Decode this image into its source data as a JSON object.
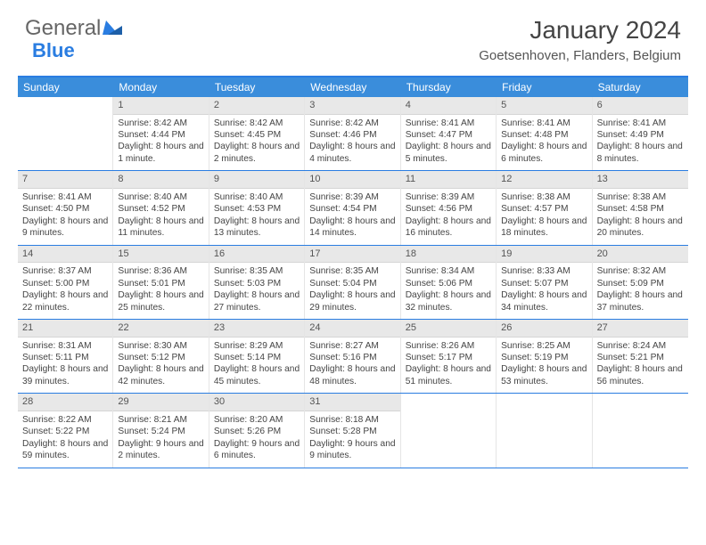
{
  "logo": {
    "part1": "General",
    "part2": "Blue"
  },
  "title": "January 2024",
  "location": "Goetsenhoven, Flanders, Belgium",
  "colors": {
    "header_bar": "#3a8ddb",
    "accent": "#2a7de1",
    "daybar": "#e8e8e8",
    "text": "#444444",
    "background": "#ffffff"
  },
  "day_names": [
    "Sunday",
    "Monday",
    "Tuesday",
    "Wednesday",
    "Thursday",
    "Friday",
    "Saturday"
  ],
  "weeks": [
    [
      {
        "n": "",
        "sunrise": "",
        "sunset": "",
        "daylight": ""
      },
      {
        "n": "1",
        "sunrise": "Sunrise: 8:42 AM",
        "sunset": "Sunset: 4:44 PM",
        "daylight": "Daylight: 8 hours and 1 minute."
      },
      {
        "n": "2",
        "sunrise": "Sunrise: 8:42 AM",
        "sunset": "Sunset: 4:45 PM",
        "daylight": "Daylight: 8 hours and 2 minutes."
      },
      {
        "n": "3",
        "sunrise": "Sunrise: 8:42 AM",
        "sunset": "Sunset: 4:46 PM",
        "daylight": "Daylight: 8 hours and 4 minutes."
      },
      {
        "n": "4",
        "sunrise": "Sunrise: 8:41 AM",
        "sunset": "Sunset: 4:47 PM",
        "daylight": "Daylight: 8 hours and 5 minutes."
      },
      {
        "n": "5",
        "sunrise": "Sunrise: 8:41 AM",
        "sunset": "Sunset: 4:48 PM",
        "daylight": "Daylight: 8 hours and 6 minutes."
      },
      {
        "n": "6",
        "sunrise": "Sunrise: 8:41 AM",
        "sunset": "Sunset: 4:49 PM",
        "daylight": "Daylight: 8 hours and 8 minutes."
      }
    ],
    [
      {
        "n": "7",
        "sunrise": "Sunrise: 8:41 AM",
        "sunset": "Sunset: 4:50 PM",
        "daylight": "Daylight: 8 hours and 9 minutes."
      },
      {
        "n": "8",
        "sunrise": "Sunrise: 8:40 AM",
        "sunset": "Sunset: 4:52 PM",
        "daylight": "Daylight: 8 hours and 11 minutes."
      },
      {
        "n": "9",
        "sunrise": "Sunrise: 8:40 AM",
        "sunset": "Sunset: 4:53 PM",
        "daylight": "Daylight: 8 hours and 13 minutes."
      },
      {
        "n": "10",
        "sunrise": "Sunrise: 8:39 AM",
        "sunset": "Sunset: 4:54 PM",
        "daylight": "Daylight: 8 hours and 14 minutes."
      },
      {
        "n": "11",
        "sunrise": "Sunrise: 8:39 AM",
        "sunset": "Sunset: 4:56 PM",
        "daylight": "Daylight: 8 hours and 16 minutes."
      },
      {
        "n": "12",
        "sunrise": "Sunrise: 8:38 AM",
        "sunset": "Sunset: 4:57 PM",
        "daylight": "Daylight: 8 hours and 18 minutes."
      },
      {
        "n": "13",
        "sunrise": "Sunrise: 8:38 AM",
        "sunset": "Sunset: 4:58 PM",
        "daylight": "Daylight: 8 hours and 20 minutes."
      }
    ],
    [
      {
        "n": "14",
        "sunrise": "Sunrise: 8:37 AM",
        "sunset": "Sunset: 5:00 PM",
        "daylight": "Daylight: 8 hours and 22 minutes."
      },
      {
        "n": "15",
        "sunrise": "Sunrise: 8:36 AM",
        "sunset": "Sunset: 5:01 PM",
        "daylight": "Daylight: 8 hours and 25 minutes."
      },
      {
        "n": "16",
        "sunrise": "Sunrise: 8:35 AM",
        "sunset": "Sunset: 5:03 PM",
        "daylight": "Daylight: 8 hours and 27 minutes."
      },
      {
        "n": "17",
        "sunrise": "Sunrise: 8:35 AM",
        "sunset": "Sunset: 5:04 PM",
        "daylight": "Daylight: 8 hours and 29 minutes."
      },
      {
        "n": "18",
        "sunrise": "Sunrise: 8:34 AM",
        "sunset": "Sunset: 5:06 PM",
        "daylight": "Daylight: 8 hours and 32 minutes."
      },
      {
        "n": "19",
        "sunrise": "Sunrise: 8:33 AM",
        "sunset": "Sunset: 5:07 PM",
        "daylight": "Daylight: 8 hours and 34 minutes."
      },
      {
        "n": "20",
        "sunrise": "Sunrise: 8:32 AM",
        "sunset": "Sunset: 5:09 PM",
        "daylight": "Daylight: 8 hours and 37 minutes."
      }
    ],
    [
      {
        "n": "21",
        "sunrise": "Sunrise: 8:31 AM",
        "sunset": "Sunset: 5:11 PM",
        "daylight": "Daylight: 8 hours and 39 minutes."
      },
      {
        "n": "22",
        "sunrise": "Sunrise: 8:30 AM",
        "sunset": "Sunset: 5:12 PM",
        "daylight": "Daylight: 8 hours and 42 minutes."
      },
      {
        "n": "23",
        "sunrise": "Sunrise: 8:29 AM",
        "sunset": "Sunset: 5:14 PM",
        "daylight": "Daylight: 8 hours and 45 minutes."
      },
      {
        "n": "24",
        "sunrise": "Sunrise: 8:27 AM",
        "sunset": "Sunset: 5:16 PM",
        "daylight": "Daylight: 8 hours and 48 minutes."
      },
      {
        "n": "25",
        "sunrise": "Sunrise: 8:26 AM",
        "sunset": "Sunset: 5:17 PM",
        "daylight": "Daylight: 8 hours and 51 minutes."
      },
      {
        "n": "26",
        "sunrise": "Sunrise: 8:25 AM",
        "sunset": "Sunset: 5:19 PM",
        "daylight": "Daylight: 8 hours and 53 minutes."
      },
      {
        "n": "27",
        "sunrise": "Sunrise: 8:24 AM",
        "sunset": "Sunset: 5:21 PM",
        "daylight": "Daylight: 8 hours and 56 minutes."
      }
    ],
    [
      {
        "n": "28",
        "sunrise": "Sunrise: 8:22 AM",
        "sunset": "Sunset: 5:22 PM",
        "daylight": "Daylight: 8 hours and 59 minutes."
      },
      {
        "n": "29",
        "sunrise": "Sunrise: 8:21 AM",
        "sunset": "Sunset: 5:24 PM",
        "daylight": "Daylight: 9 hours and 2 minutes."
      },
      {
        "n": "30",
        "sunrise": "Sunrise: 8:20 AM",
        "sunset": "Sunset: 5:26 PM",
        "daylight": "Daylight: 9 hours and 6 minutes."
      },
      {
        "n": "31",
        "sunrise": "Sunrise: 8:18 AM",
        "sunset": "Sunset: 5:28 PM",
        "daylight": "Daylight: 9 hours and 9 minutes."
      },
      {
        "n": "",
        "sunrise": "",
        "sunset": "",
        "daylight": ""
      },
      {
        "n": "",
        "sunrise": "",
        "sunset": "",
        "daylight": ""
      },
      {
        "n": "",
        "sunrise": "",
        "sunset": "",
        "daylight": ""
      }
    ]
  ]
}
